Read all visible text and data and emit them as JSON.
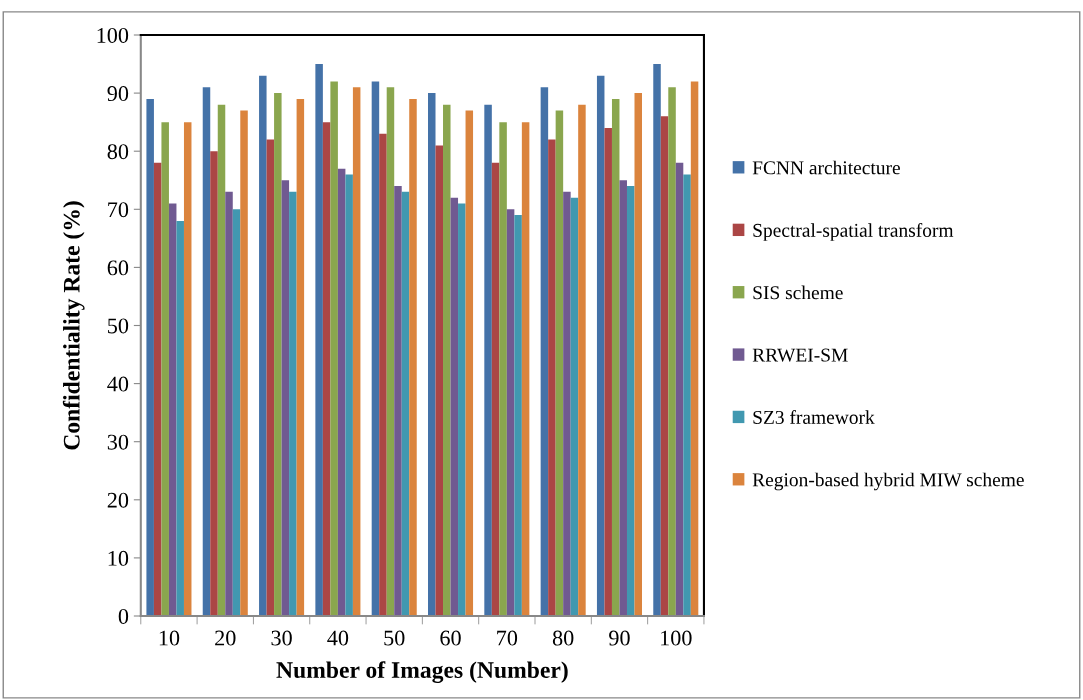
{
  "chart_data": {
    "type": "bar",
    "xlabel": "Number of Images (Number)",
    "ylabel": "Confidentiality Rate (%)",
    "categories": [
      "10",
      "20",
      "30",
      "40",
      "50",
      "60",
      "70",
      "80",
      "90",
      "100"
    ],
    "series": [
      {
        "name": "FCNN architecture",
        "color": "#4472a8",
        "values": [
          89,
          91,
          93,
          95,
          92,
          90,
          88,
          91,
          93,
          95
        ]
      },
      {
        "name": "Spectral-spatial transform",
        "color": "#ab4645",
        "values": [
          78,
          80,
          82,
          85,
          83,
          81,
          78,
          82,
          84,
          86
        ]
      },
      {
        "name": "SIS scheme",
        "color": "#8aa64e",
        "values": [
          85,
          88,
          90,
          92,
          91,
          88,
          85,
          87,
          89,
          91
        ]
      },
      {
        "name": "RRWEI-SM",
        "color": "#705a91",
        "values": [
          71,
          73,
          75,
          77,
          74,
          72,
          70,
          73,
          75,
          78
        ]
      },
      {
        "name": "SZ3 framework",
        "color": "#4198b0",
        "values": [
          68,
          70,
          73,
          76,
          73,
          71,
          69,
          72,
          74,
          76
        ]
      },
      {
        "name": "Region-based hybrid MIW scheme",
        "color": "#db843d",
        "values": [
          85,
          87,
          89,
          91,
          89,
          87,
          85,
          88,
          90,
          92
        ]
      }
    ],
    "ylim": [
      0,
      100
    ],
    "yticks": [
      0,
      10,
      20,
      30,
      40,
      50,
      60,
      70,
      80,
      90,
      100
    ],
    "grid": false,
    "legend": "right"
  }
}
